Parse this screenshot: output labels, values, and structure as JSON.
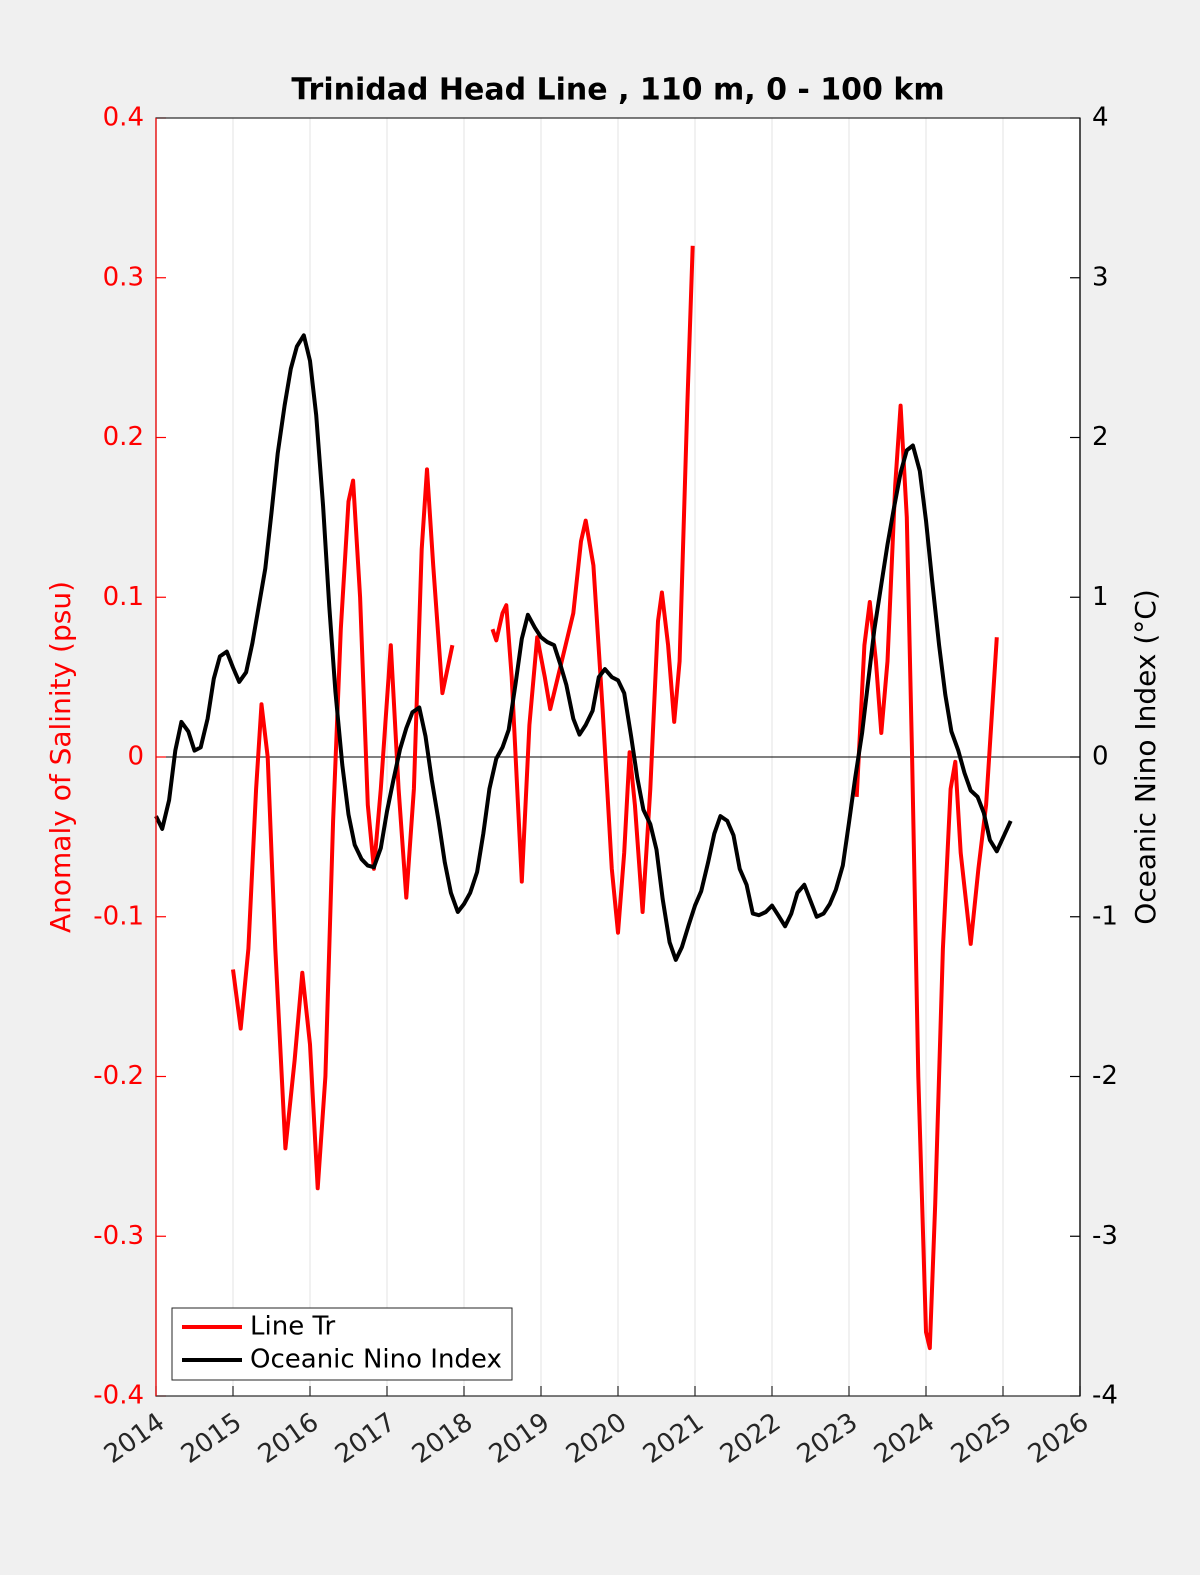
{
  "chart_data": {
    "type": "line",
    "title": "Trinidad Head Line , 110 m, 0 - 100 km",
    "ylabel": "Anomaly of Salinity (psu)",
    "y2label": "Oceanic Nino Index (°C)",
    "xlim": [
      2014,
      2026
    ],
    "xticks": [
      2014,
      2015,
      2016,
      2017,
      2018,
      2019,
      2020,
      2021,
      2022,
      2023,
      2024,
      2025,
      2026
    ],
    "ylim": [
      -0.4,
      0.4
    ],
    "yticks": [
      -0.4,
      -0.3,
      -0.2,
      -0.1,
      0,
      0.1,
      0.2,
      0.3,
      0.4
    ],
    "y2lim": [
      -4,
      4
    ],
    "y2ticks": [
      -4,
      -3,
      -2,
      -1,
      0,
      1,
      2,
      3,
      4
    ],
    "grid": true,
    "legend": "lower left",
    "series": [
      {
        "name": "Line Tr",
        "color": "#ff0000",
        "axis": "y",
        "x": [
          2015.0,
          2015.1,
          2015.2,
          2015.3,
          2015.37,
          2015.45,
          2015.55,
          2015.68,
          2015.8,
          2015.9,
          2016.0,
          2016.1,
          2016.2,
          2016.3,
          2016.4,
          2016.5,
          2016.56,
          2016.65,
          2016.75,
          2016.83,
          2016.92,
          2017.05,
          2017.15,
          2017.25,
          2017.35,
          2017.45,
          2017.52,
          2017.6,
          2017.72,
          2017.85,
          null,
          2018.37,
          2018.42,
          2018.5,
          2018.55,
          2018.62,
          2018.75,
          2018.85,
          2018.95,
          2019.05,
          2019.12,
          2019.22,
          2019.32,
          2019.42,
          2019.52,
          2019.58,
          2019.68,
          2019.8,
          2019.92,
          2020.0,
          2020.08,
          2020.15,
          2020.22,
          2020.32,
          2020.42,
          2020.52,
          2020.57,
          2020.65,
          2020.73,
          2020.8,
          2020.9,
          2020.97,
          null,
          2023.1,
          2023.2,
          2023.27,
          2023.35,
          2023.42,
          2023.5,
          2023.6,
          2023.67,
          2023.75,
          2023.82,
          2023.9,
          2024.0,
          2024.05,
          2024.12,
          2024.22,
          2024.32,
          2024.38,
          2024.45,
          2024.58,
          2024.68,
          2024.78,
          2024.92
        ],
        "values": [
          -0.133,
          -0.17,
          -0.12,
          -0.02,
          0.033,
          0.0,
          -0.12,
          -0.245,
          -0.19,
          -0.135,
          -0.18,
          -0.27,
          -0.2,
          -0.04,
          0.08,
          0.16,
          0.173,
          0.1,
          -0.03,
          -0.07,
          -0.02,
          0.07,
          -0.02,
          -0.088,
          -0.02,
          0.13,
          0.18,
          0.12,
          0.04,
          0.07,
          null,
          0.08,
          0.073,
          0.09,
          0.095,
          0.05,
          -0.078,
          0.02,
          0.075,
          0.05,
          0.03,
          0.05,
          0.07,
          0.09,
          0.135,
          0.148,
          0.12,
          0.03,
          -0.07,
          -0.11,
          -0.06,
          0.003,
          -0.03,
          -0.097,
          -0.02,
          0.085,
          0.103,
          0.07,
          0.022,
          0.06,
          0.22,
          0.32,
          null,
          -0.025,
          0.07,
          0.097,
          0.06,
          0.015,
          0.06,
          0.17,
          0.22,
          0.15,
          0.0,
          -0.2,
          -0.36,
          -0.37,
          -0.28,
          -0.12,
          -0.02,
          -0.003,
          -0.06,
          -0.117,
          -0.07,
          -0.03,
          0.075
        ]
      },
      {
        "name": "Oceanic Nino Index",
        "color": "#000000",
        "axis": "y2",
        "x": [
          2014.0,
          2014.08,
          2014.17,
          2014.25,
          2014.33,
          2014.42,
          2014.5,
          2014.58,
          2014.67,
          2014.75,
          2014.83,
          2014.92,
          2015.0,
          2015.08,
          2015.17,
          2015.25,
          2015.33,
          2015.42,
          2015.5,
          2015.58,
          2015.67,
          2015.75,
          2015.83,
          2015.92,
          2016.0,
          2016.08,
          2016.17,
          2016.25,
          2016.33,
          2016.42,
          2016.5,
          2016.58,
          2016.67,
          2016.75,
          2016.83,
          2016.92,
          2017.0,
          2017.08,
          2017.17,
          2017.25,
          2017.33,
          2017.42,
          2017.5,
          2017.58,
          2017.67,
          2017.75,
          2017.83,
          2017.92,
          2018.0,
          2018.08,
          2018.17,
          2018.25,
          2018.33,
          2018.42,
          2018.5,
          2018.58,
          2018.67,
          2018.75,
          2018.83,
          2018.92,
          2019.0,
          2019.08,
          2019.17,
          2019.25,
          2019.33,
          2019.42,
          2019.5,
          2019.58,
          2019.67,
          2019.75,
          2019.83,
          2019.92,
          2020.0,
          2020.08,
          2020.17,
          2020.25,
          2020.33,
          2020.42,
          2020.5,
          2020.58,
          2020.67,
          2020.75,
          2020.83,
          2020.92,
          2021.0,
          2021.08,
          2021.17,
          2021.25,
          2021.33,
          2021.42,
          2021.5,
          2021.58,
          2021.67,
          2021.75,
          2021.83,
          2021.92,
          2022.0,
          2022.08,
          2022.17,
          2022.25,
          2022.33,
          2022.42,
          2022.5,
          2022.58,
          2022.67,
          2022.75,
          2022.83,
          2022.92,
          2023.0,
          2023.08,
          2023.17,
          2023.25,
          2023.33,
          2023.42,
          2023.5,
          2023.58,
          2023.67,
          2023.75,
          2023.83,
          2023.92,
          2024.0,
          2024.08,
          2024.17,
          2024.25,
          2024.33,
          2024.42,
          2024.5,
          2024.58,
          2024.67,
          2024.75,
          2024.83,
          2024.92,
          2025.1
        ],
        "values": [
          -0.37,
          -0.45,
          -0.27,
          0.04,
          0.22,
          0.16,
          0.04,
          0.06,
          0.24,
          0.49,
          0.63,
          0.66,
          0.56,
          0.47,
          0.53,
          0.71,
          0.93,
          1.18,
          1.53,
          1.9,
          2.2,
          2.43,
          2.57,
          2.64,
          2.48,
          2.14,
          1.57,
          0.94,
          0.41,
          -0.05,
          -0.36,
          -0.55,
          -0.64,
          -0.68,
          -0.69,
          -0.57,
          -0.34,
          -0.15,
          0.05,
          0.18,
          0.28,
          0.31,
          0.13,
          -0.14,
          -0.4,
          -0.66,
          -0.85,
          -0.97,
          -0.92,
          -0.85,
          -0.72,
          -0.48,
          -0.2,
          -0.01,
          0.06,
          0.17,
          0.46,
          0.74,
          0.89,
          0.81,
          0.75,
          0.72,
          0.7,
          0.58,
          0.45,
          0.24,
          0.14,
          0.2,
          0.29,
          0.5,
          0.55,
          0.5,
          0.48,
          0.4,
          0.13,
          -0.13,
          -0.33,
          -0.42,
          -0.58,
          -0.89,
          -1.16,
          -1.27,
          -1.19,
          -1.05,
          -0.93,
          -0.84,
          -0.66,
          -0.48,
          -0.37,
          -0.4,
          -0.49,
          -0.7,
          -0.8,
          -0.98,
          -0.99,
          -0.97,
          -0.93,
          -0.99,
          -1.06,
          -0.98,
          -0.85,
          -0.8,
          -0.9,
          -1.0,
          -0.98,
          -0.92,
          -0.83,
          -0.68,
          -0.41,
          -0.13,
          0.15,
          0.48,
          0.8,
          1.08,
          1.33,
          1.55,
          1.78,
          1.92,
          1.95,
          1.79,
          1.48,
          1.1,
          0.7,
          0.39,
          0.16,
          0.04,
          -0.1,
          -0.21,
          -0.25,
          -0.35,
          -0.52,
          -0.59,
          -0.4
        ]
      }
    ]
  }
}
